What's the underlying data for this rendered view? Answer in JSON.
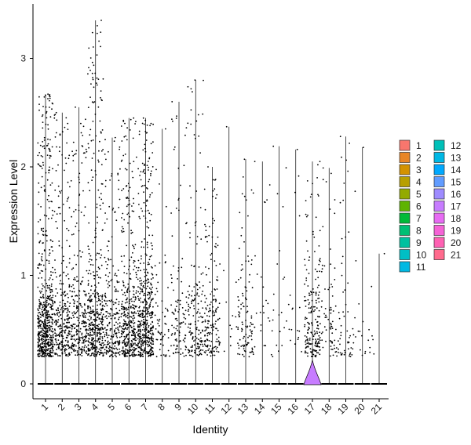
{
  "chart_data": {
    "type": "violin",
    "xlabel": "Identity",
    "ylabel": "Expression Level",
    "ylim": [
      -0.15,
      3.5
    ],
    "yticks": [
      0,
      1,
      2,
      3
    ],
    "categories": [
      "1",
      "2",
      "3",
      "4",
      "5",
      "6",
      "7",
      "8",
      "9",
      "10",
      "11",
      "12",
      "13",
      "14",
      "15",
      "16",
      "17",
      "18",
      "19",
      "20",
      "21"
    ],
    "colors": [
      "#F8766D",
      "#E88526",
      "#D39200",
      "#B79F00",
      "#93AA00",
      "#5EB300",
      "#00BA38",
      "#00BF74",
      "#00C19F",
      "#00BFC4",
      "#00B9E3",
      "#00ADFA",
      "#619CFF",
      "#AE87FF",
      "#DB72FB",
      "#F564E3",
      "#FF61C3",
      "#FF6C91",
      "#F8766D",
      "#FF6C91",
      "#FF689F"
    ],
    "legend_colors": [
      "#F8766D",
      "#E88526",
      "#D39200",
      "#B79F00",
      "#93AA00",
      "#5EB300",
      "#00BA38",
      "#00BF74",
      "#00C19F",
      "#00BFC4",
      "#00B9E3",
      "#00C0B8",
      "#00B8E5",
      "#00A9FF",
      "#619CFF",
      "#9E8BFF",
      "#C77CFF",
      "#E76BF3",
      "#F563D6",
      "#FF61B3",
      "#FF6A8D"
    ],
    "max_values": [
      2.67,
      2.5,
      2.55,
      3.35,
      2.27,
      2.45,
      2.45,
      2.35,
      2.6,
      2.8,
      2.0,
      2.37,
      2.07,
      2.05,
      2.19,
      2.16,
      2.05,
      1.99,
      2.28,
      2.18,
      1.2
    ],
    "point_counts": [
      620,
      300,
      260,
      420,
      230,
      380,
      480,
      60,
      110,
      160,
      170,
      12,
      110,
      24,
      22,
      18,
      200,
      70,
      55,
      18,
      5
    ],
    "legend": [
      "1",
      "2",
      "3",
      "4",
      "5",
      "6",
      "7",
      "8",
      "9",
      "10",
      "11",
      "12",
      "13",
      "14",
      "15",
      "16",
      "17",
      "18",
      "19",
      "20",
      "21"
    ]
  }
}
